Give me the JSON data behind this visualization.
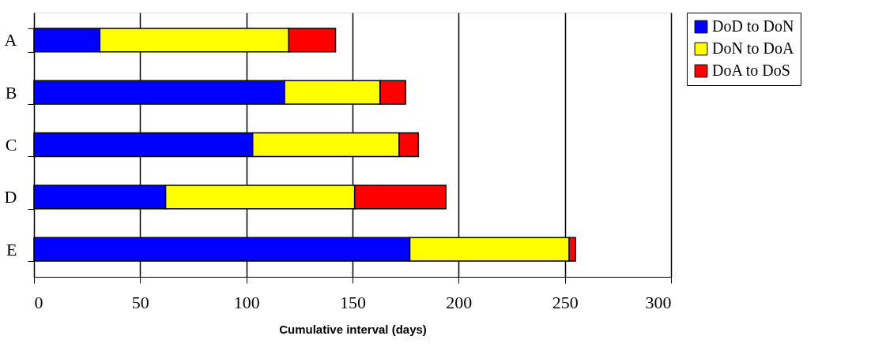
{
  "chart_data": {
    "type": "bar",
    "orientation": "horizontal",
    "stacked": true,
    "xlabel": "Cumulative interval (days)",
    "categories": [
      "A",
      "B",
      "C",
      "D",
      "E"
    ],
    "series": [
      {
        "name": "DoD to DoN",
        "color": "#0000ff",
        "values": [
          31,
          118,
          103,
          62,
          177
        ]
      },
      {
        "name": "DoN to DoA",
        "color": "#ffff00",
        "values": [
          89,
          45,
          69,
          89,
          75
        ]
      },
      {
        "name": "DoA to DoS",
        "color": "#ff0000",
        "values": [
          22,
          12,
          9,
          43,
          3
        ]
      }
    ],
    "xlim": [
      0,
      300
    ],
    "xticks": [
      0,
      50,
      100,
      150,
      200,
      250,
      300
    ],
    "grid": "x",
    "legend": "right"
  }
}
